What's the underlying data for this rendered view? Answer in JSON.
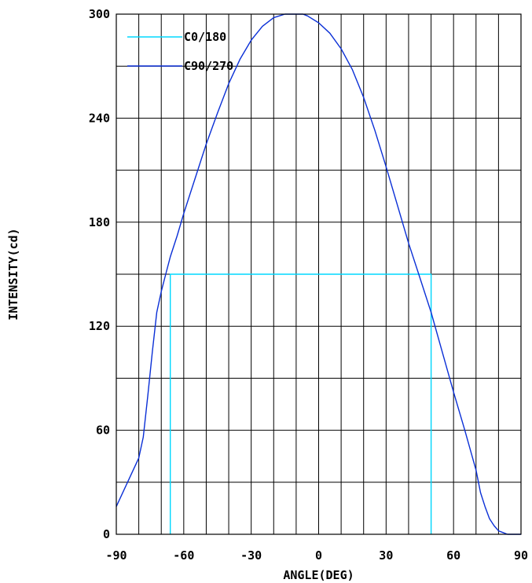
{
  "chart_data": {
    "type": "line",
    "xlabel": "ANGLE(DEG)",
    "ylabel": "INTENSITY(cd)",
    "xlim": [
      -90,
      90
    ],
    "ylim": [
      0,
      300
    ],
    "x_ticks": [
      -90,
      -60,
      -30,
      0,
      30,
      60,
      90
    ],
    "y_ticks": [
      0,
      60,
      120,
      180,
      240,
      300
    ],
    "grid": true,
    "legend_position": "top-left",
    "series": [
      {
        "name": "C0/180",
        "color": "#00d8ff",
        "x": [
          -66,
          -66,
          50,
          50
        ],
        "y": [
          0,
          150,
          150,
          0
        ]
      },
      {
        "name": "C90/270",
        "color": "#0a2fd6",
        "x": [
          -90,
          -85,
          -80,
          -78,
          -76,
          -74,
          -72,
          -70,
          -68,
          -66,
          -63,
          -60,
          -55,
          -50,
          -45,
          -40,
          -35,
          -30,
          -25,
          -20,
          -15,
          -10,
          -7,
          -5,
          0,
          5,
          10,
          15,
          20,
          25,
          30,
          35,
          40,
          45,
          50,
          55,
          60,
          65,
          70,
          72,
          74,
          76,
          78,
          80,
          82,
          84,
          86,
          88,
          90
        ],
        "y": [
          16,
          30,
          44,
          56,
          80,
          105,
          128,
          140,
          150,
          160,
          172,
          185,
          205,
          225,
          243,
          260,
          274,
          285,
          293,
          298,
          300,
          300,
          300,
          299,
          295,
          289,
          280,
          268,
          252,
          233,
          212,
          190,
          168,
          148,
          128,
          105,
          82,
          60,
          37,
          24,
          16,
          9,
          5,
          2,
          1,
          0,
          0,
          0,
          0
        ]
      }
    ]
  }
}
